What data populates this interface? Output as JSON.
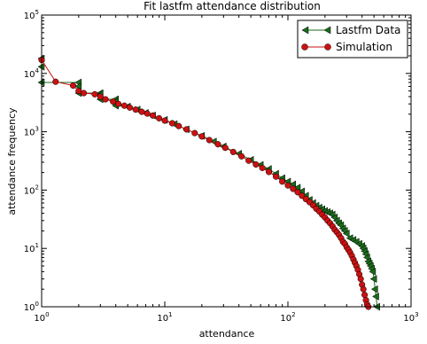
{
  "chart_data": {
    "type": "line",
    "title": "Fit lastfm attendance distribution",
    "xlabel": "attendance",
    "ylabel": "attendance frequency",
    "xscale": "log",
    "yscale": "log",
    "xlim": [
      1,
      1000
    ],
    "ylim": [
      1,
      100000
    ],
    "grid": false,
    "legend_position": "top-right",
    "x_ticks": [
      {
        "base": "10",
        "exp": "0",
        "value": 1
      },
      {
        "base": "10",
        "exp": "1",
        "value": 10
      },
      {
        "base": "10",
        "exp": "2",
        "value": 100
      },
      {
        "base": "10",
        "exp": "3",
        "value": 1000
      }
    ],
    "y_ticks": [
      {
        "base": "10",
        "exp": "0",
        "value": 1
      },
      {
        "base": "10",
        "exp": "1",
        "value": 10
      },
      {
        "base": "10",
        "exp": "2",
        "value": 100
      },
      {
        "base": "10",
        "exp": "3",
        "value": 1000
      },
      {
        "base": "10",
        "exp": "4",
        "value": 10000
      },
      {
        "base": "10",
        "exp": "5",
        "value": 100000
      }
    ],
    "series": [
      {
        "name": "Lastfm Data",
        "color": "#1a6b1a",
        "marker": "triangle-left",
        "x": [
          1,
          1,
          1,
          2,
          2,
          2,
          3,
          3,
          3,
          4,
          4,
          4,
          5,
          6,
          7,
          8,
          10,
          12,
          15,
          20,
          25,
          30,
          40,
          50,
          60,
          70,
          80,
          90,
          100,
          110,
          120,
          130,
          140,
          150,
          160,
          170,
          180,
          190,
          200,
          210,
          220,
          230,
          240,
          250,
          260,
          270,
          280,
          290,
          300,
          320,
          340,
          360,
          380,
          400,
          410,
          420,
          430,
          440,
          450,
          460,
          470,
          480,
          490,
          500,
          510,
          520,
          530
        ],
        "y": [
          18000,
          13000,
          7000,
          7000,
          6000,
          4600,
          4600,
          4400,
          3600,
          3600,
          3300,
          2800,
          2700,
          2400,
          2100,
          1900,
          1600,
          1350,
          1100,
          850,
          680,
          560,
          420,
          330,
          270,
          230,
          190,
          160,
          140,
          125,
          110,
          95,
          80,
          68,
          60,
          54,
          50,
          47,
          44,
          42,
          40,
          38,
          34,
          30,
          27,
          25,
          22,
          20,
          18,
          15,
          14,
          13,
          12,
          11,
          10,
          9,
          8,
          7,
          6,
          5.5,
          5,
          4.5,
          4,
          3,
          2,
          1.5,
          1
        ]
      },
      {
        "name": "Simulation",
        "color": "#cc1111",
        "marker": "circle",
        "x": [
          1,
          1.3,
          1.8,
          2,
          2.2,
          2.7,
          3,
          3.3,
          3.8,
          4.2,
          4.7,
          5.2,
          5.8,
          6.5,
          7.2,
          8,
          9,
          10,
          11.5,
          13,
          15,
          17.5,
          20,
          23,
          27,
          31,
          36,
          42,
          48,
          55,
          62,
          70,
          80,
          90,
          100,
          110,
          120,
          130,
          140,
          150,
          160,
          170,
          180,
          190,
          200,
          210,
          220,
          230,
          240,
          250,
          260,
          270,
          280,
          290,
          300,
          310,
          320,
          330,
          340,
          350,
          360,
          370,
          380,
          390,
          400,
          410,
          420,
          430,
          440,
          450
        ],
        "y": [
          17000,
          7200,
          6200,
          5000,
          4600,
          4400,
          4000,
          3600,
          3300,
          3000,
          2800,
          2600,
          2400,
          2200,
          2050,
          1900,
          1700,
          1550,
          1400,
          1250,
          1100,
          950,
          830,
          720,
          610,
          530,
          450,
          380,
          320,
          275,
          240,
          205,
          170,
          140,
          120,
          105,
          92,
          80,
          70,
          62,
          55,
          48,
          43,
          38,
          34,
          30,
          27,
          24,
          21,
          19,
          17,
          15,
          13,
          12,
          10.5,
          9.5,
          8.5,
          7.5,
          6.5,
          5.7,
          5,
          4.3,
          3.6,
          3,
          2.4,
          2,
          1.6,
          1.3,
          1.1,
          1
        ]
      }
    ]
  }
}
